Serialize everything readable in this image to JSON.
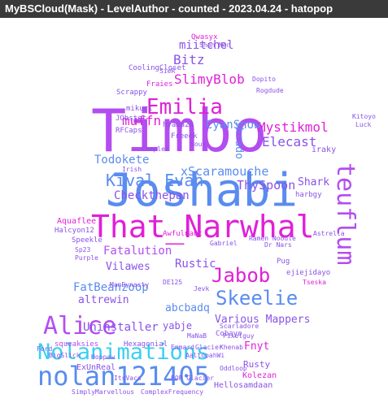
{
  "window": {
    "title": "MyBSCloud(Mask) - LevelAuthor - counted - 2023.04.24 - hatopop"
  },
  "colors": {
    "purple": "#b44df0",
    "magenta": "#e020d8",
    "blue": "#5a8cf0",
    "cyan": "#3ad0f0",
    "violet": "#8a52e8",
    "light_blue": "#7ab4f5"
  },
  "words": {
    "timbo": "Timbo",
    "joshabi": "Joshabi",
    "that_narwhal": "That_Narwhal",
    "nolan121405": "nolan121405",
    "nolanimations": "Nolanimations",
    "alice": "Alice",
    "emilia": "Emilia",
    "skeelie": "Skeelie",
    "jabob": "Jabob",
    "kival_evan": "Kival Evan",
    "teuflum": "teuflum",
    "slimyblob": "SlimyBlob",
    "miitchel": "miitchel",
    "bitz": "Bitz",
    "muffn": "muffn",
    "mystikmol": "Mystikmol",
    "elecast": "Elecast",
    "cyansnow": "CyanSnow",
    "todokete": "Todokete",
    "xscaramouche": "xScaramouche",
    "checkthepan": "Checkthepan",
    "thyspoon": "ThySpoon",
    "shark": "Shark",
    "fatalution": "Fatalution",
    "vilawes": "Vilawes",
    "rustic": "Rustic",
    "fatbeanzoop": "FatBeanzoop",
    "altrewin": "altrewin",
    "abcbadq": "abcbadq",
    "uninstaller": "Uninstaller",
    "yabje": "yabje",
    "various_mappers": "Various Mappers",
    "fnyt": "Fnyt",
    "shrado": "shrado",
    "hexagonial": "Hexagonial",
    "squeaksies": "squeaksies",
    "exunreal": "ExUnReal",
    "rusty": "Rusty",
    "kolezan": "Kolezan",
    "hellosamdaan": "Hellosamdaan",
    "simplymarvellous": "SimplyMarvellous",
    "complexfrequency": "ComplexFrequency",
    "cobayo": "Cobayo",
    "aquaflee": "Aquaflee",
    "halcyon12": "Halcyon12",
    "speekle": "Speekle",
    "iraky": "iraky",
    "harbgy": "harbgy",
    "qwasyx": "Qwasyx",
    "shan_man": "Shan_Man",
    "coolingcloset": "CoolingCloset",
    "fraies": "Fraies",
    "scrappy": "Scrappy",
    "rfcaps": "RFCaps",
    "jobster": "JObster",
    "mikuri": "mikuri",
    "hyama24": "hyama24",
    "freeek": "Freeek",
    "complex": "Complex",
    "souk": "Souk",
    "irish": "Irish",
    "gabriel": "Gabriel",
    "awfulnaut": "Awfulnaut",
    "ramen_noodle": "Ramen Noodle",
    "dr_nars": "Dr Nars",
    "pug": "Pug",
    "ejiejidayo": "ejiejidayo",
    "tseska": "Tseska",
    "de125": "DE125",
    "mandynasty": "ManDynasty",
    "emmard": "Emmard",
    "aaltopahwi": "AaltopahWi",
    "oddloop": "Oddloop",
    "khenab": "Khenab",
    "sp23": "Sp23",
    "purple": "Purple",
    "astrella": "Astrella",
    "dopito": "Dopito",
    "rogdude": "Rogdude",
    "kitoyo": "Kitoyo",
    "luck": "Luck",
    "jevk": "Jevk",
    "pixelguy": "Pixelguy",
    "glacier": "Glacier",
    "hoppaw": "Hoppaw",
    "bigslick": "BigSlick",
    "scarladore": "Scarladore",
    "itsvacs": "ItsVacs",
    "eop_glacier": "EOP Glacier",
    "manab": "MaNaB",
    "sieh": "SieR",
    "ford": "Ford"
  }
}
